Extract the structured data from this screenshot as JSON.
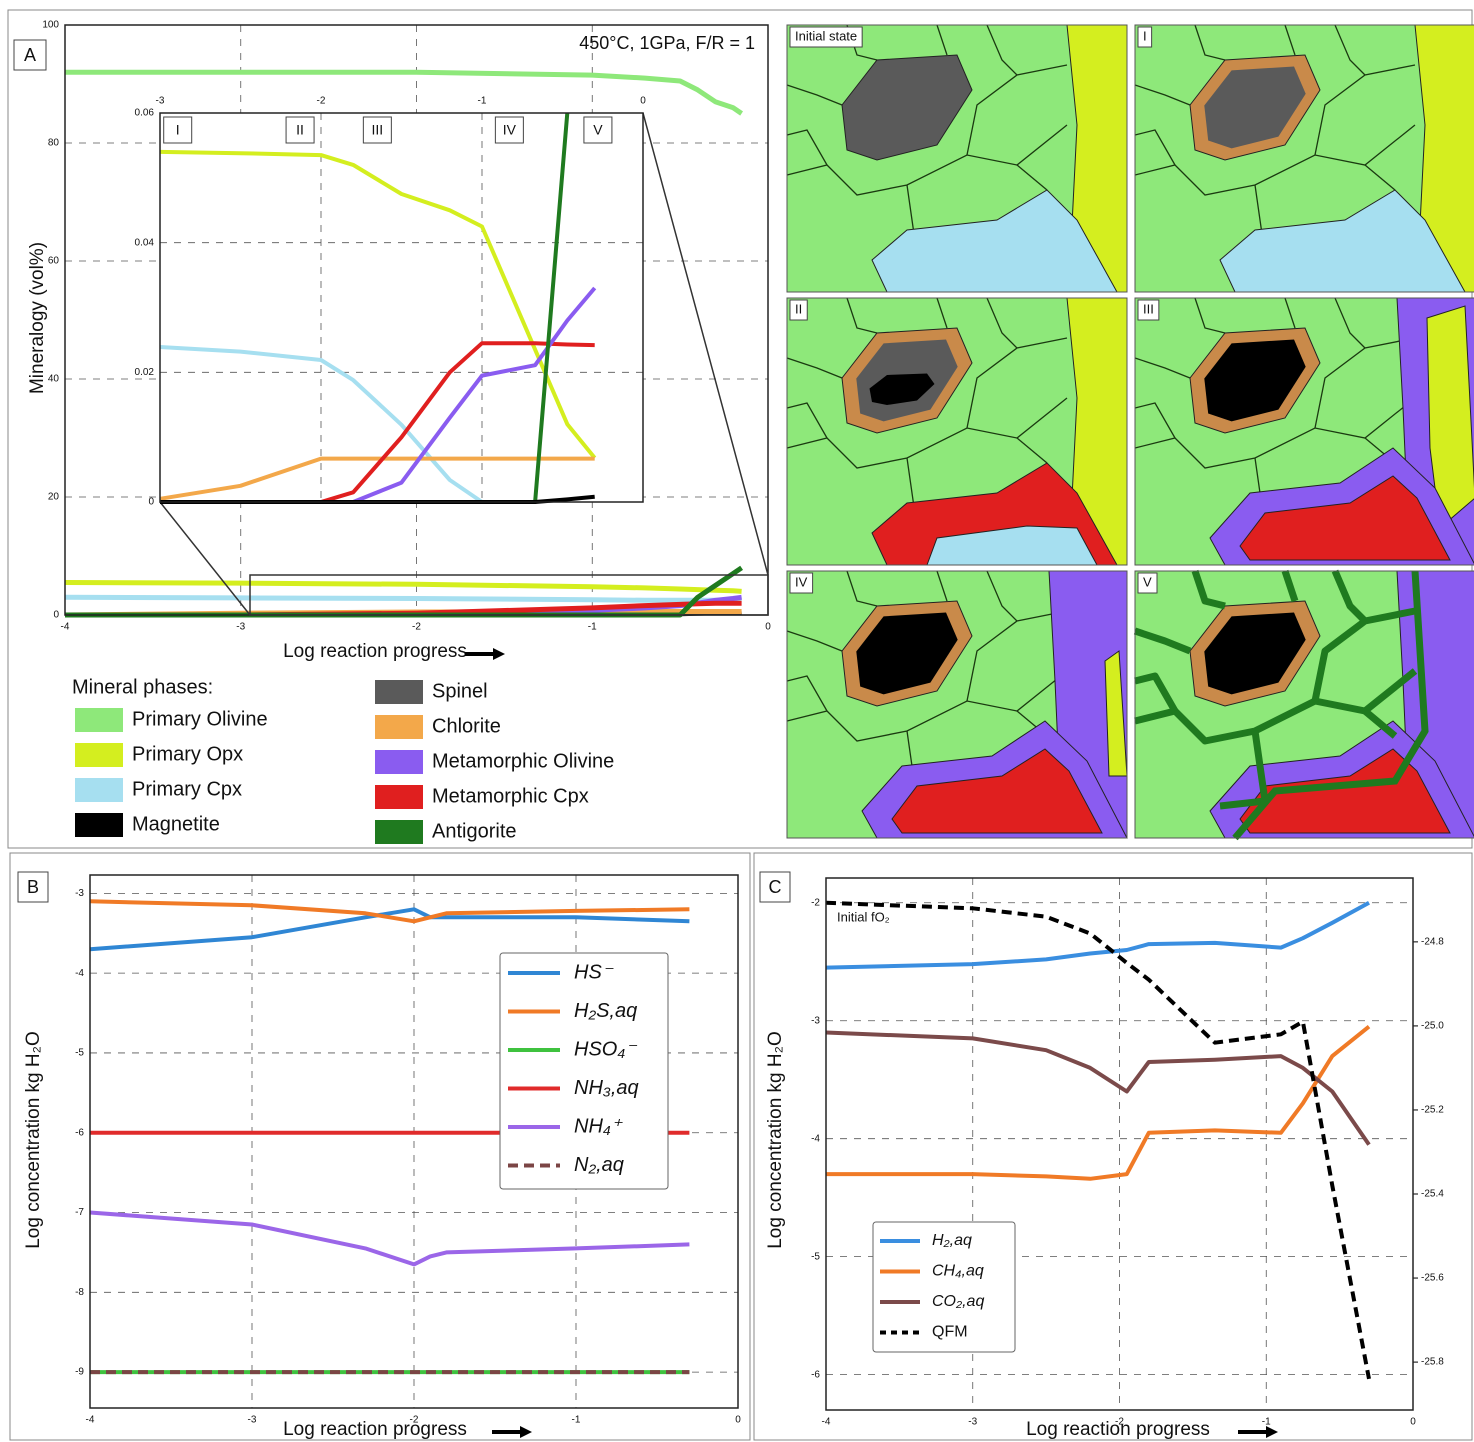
{
  "chart_data": [
    {
      "type": "line",
      "panel_label": "A",
      "annotation": "450°C, 1GPa, F/R = 1",
      "xlabel": "Log reaction progress",
      "ylabel": "Mineralogy (vol%)",
      "x": [
        -4,
        -3,
        -2,
        -1,
        -0.7,
        -0.5,
        -0.4,
        -0.3,
        -0.2,
        -0.15
      ],
      "xlim": [
        -4,
        0
      ],
      "xticks": [
        -4,
        -3,
        -2,
        -1,
        0
      ],
      "ylim": [
        0,
        100
      ],
      "yticks": [
        0,
        20,
        40,
        60,
        80,
        100
      ],
      "grid": true,
      "legend_title": "Mineral phases:",
      "series": [
        {
          "name": "Primary Olivine",
          "color": "#8ee87a",
          "values": [
            92,
            92,
            92,
            91.5,
            91,
            90.5,
            89,
            87,
            86,
            85
          ]
        },
        {
          "name": "Primary Opx",
          "color": "#d4ee1f",
          "values": [
            5.5,
            5.4,
            5.2,
            4.8,
            4.6,
            4.4,
            4.3,
            4.2,
            4.1,
            4.0
          ]
        },
        {
          "name": "Primary Cpx",
          "color": "#a6dff0",
          "values": [
            3,
            2.9,
            2.8,
            2.6,
            2.5,
            2.5,
            2.5,
            2.5,
            2.5,
            2.5
          ]
        },
        {
          "name": "Magnetite",
          "color": "#000000",
          "values": [
            0,
            0,
            0,
            0,
            0.1,
            0.2,
            0.3,
            0.4,
            0.4,
            0.5
          ]
        },
        {
          "name": "Spinel",
          "color": "#5a5a5a",
          "values": [
            null,
            null,
            null,
            null,
            null,
            null,
            null,
            null,
            null,
            null
          ]
        },
        {
          "name": "Chlorite",
          "color": "#f3a84a",
          "values": [
            0,
            0.3,
            0.5,
            0.6,
            0.6,
            0.6,
            0.6,
            0.6,
            0.6,
            0.6
          ]
        },
        {
          "name": "Metamorphic Olivine",
          "color": "#8a5cf0",
          "values": [
            0,
            0,
            0.1,
            0.8,
            1.2,
            1.6,
            2,
            2.5,
            2.8,
            3.0
          ]
        },
        {
          "name": "Metamorphic Cpx",
          "color": "#e01f1f",
          "values": [
            0,
            0,
            0.3,
            1.2,
            1.6,
            1.8,
            1.9,
            2,
            2,
            2
          ]
        },
        {
          "name": "Antigorite",
          "color": "#1f7a1f",
          "values": [
            0,
            0,
            0,
            0,
            0,
            0,
            3,
            5,
            7,
            8
          ]
        }
      ]
    },
    {
      "type": "line",
      "x": [
        -3,
        -2.5,
        -2,
        -1.8,
        -1.5,
        -1.2,
        -1,
        -0.67,
        -0.47,
        -0.3
      ],
      "xlim": [
        -3,
        0
      ],
      "xticks": [
        -3,
        -2,
        -1,
        0
      ],
      "ylim": [
        0,
        0.06
      ],
      "yticks": [
        0,
        0.02,
        0.04,
        0.06
      ],
      "grid": true,
      "stage_labels": [
        {
          "label": "I",
          "x": -2.89
        },
        {
          "label": "II",
          "x": -2.13
        },
        {
          "label": "III",
          "x": -1.65
        },
        {
          "label": "IV",
          "x": -0.83
        },
        {
          "label": "V",
          "x": -0.28
        }
      ],
      "series": [
        {
          "color": "#d4ee1f",
          "values": [
            0.054,
            0.0538,
            0.0535,
            0.052,
            0.0475,
            0.045,
            0.0425,
            0.0235,
            0.012,
            0.0068
          ]
        },
        {
          "color": "#a6dff0",
          "values": [
            0.0239,
            0.0232,
            0.0219,
            0.0188,
            0.0119,
            0.0034,
            0,
            null,
            null,
            null
          ]
        },
        {
          "color": "#f3a84a",
          "values": [
            0.0005,
            0.0025,
            0.0067,
            0.0067,
            0.0067,
            0.0067,
            0.0067,
            0.0067,
            0.0067,
            0.0067
          ]
        },
        {
          "color": "#e01f1f",
          "values": [
            0,
            0,
            0,
            0.0015,
            0.01,
            0.02,
            0.0245,
            0.0245,
            0.0243,
            0.0242
          ]
        },
        {
          "color": "#8a5cf0",
          "values": [
            0,
            0,
            0,
            0,
            0.003,
            0.013,
            0.0195,
            0.0211,
            0.028,
            0.033
          ]
        },
        {
          "color": "#1f7a1f",
          "values": [
            0,
            0,
            0,
            0,
            0,
            0,
            0,
            0,
            0.06,
            null
          ]
        },
        {
          "color": "#000000",
          "values": [
            0,
            0,
            0,
            0,
            0,
            0,
            0,
            0,
            0.0004,
            0.0008
          ]
        }
      ]
    },
    {
      "type": "line",
      "panel_label": "B",
      "xlabel": "Log reaction progress",
      "ylabel": "Log concentration kg H₂O",
      "x": [
        -4,
        -3,
        -2.3,
        -2,
        -1.9,
        -1.8,
        -1,
        -0.3
      ],
      "xlim": [
        -4,
        0
      ],
      "xticks": [
        -4,
        -3,
        -2,
        -1,
        0
      ],
      "ylim": [
        -9.45,
        -2.77
      ],
      "yticks": [
        -9,
        -8,
        -7,
        -6,
        -5,
        -4,
        -3
      ],
      "grid": true,
      "series": [
        {
          "name": "HS⁻",
          "color": "#2f86d4",
          "values": [
            -3.7,
            -3.55,
            -3.3,
            -3.2,
            -3.3,
            -3.3,
            -3.3,
            -3.35
          ]
        },
        {
          "name": "H₂S,aq",
          "color": "#f07a26",
          "values": [
            -3.1,
            -3.15,
            -3.25,
            -3.35,
            -3.3,
            -3.25,
            -3.22,
            -3.2
          ]
        },
        {
          "name": "HSO₄⁻",
          "color": "#3fc23f",
          "values": [
            -9,
            -9,
            -9,
            -9,
            -9,
            -9,
            -9,
            -9
          ]
        },
        {
          "name": "NH₃,aq",
          "color": "#e02b2b",
          "values": [
            -6,
            -6,
            -6,
            -6,
            -6,
            -6,
            -6,
            -6
          ]
        },
        {
          "name": "NH₄⁺",
          "color": "#9b66e8",
          "values": [
            -7,
            -7.15,
            -7.45,
            -7.65,
            -7.55,
            -7.5,
            -7.45,
            -7.4
          ]
        },
        {
          "name": "N₂,aq",
          "color": "#7b4545",
          "dash": true,
          "values": [
            -9,
            -9,
            -9,
            -9,
            -9,
            -9,
            -9,
            -9
          ]
        }
      ]
    },
    {
      "type": "line",
      "panel_label": "C",
      "xlabel": "Log reaction progress",
      "ylabel": "Log concentration kg H₂O",
      "annotation": "Initial fO₂",
      "x": [
        -4,
        -3,
        -2.5,
        -2.2,
        -1.95,
        -1.8,
        -1.35,
        -0.9,
        -0.75,
        -0.55,
        -0.3
      ],
      "xlim": [
        -4,
        0
      ],
      "xticks": [
        -4,
        -3,
        -2,
        -1,
        0
      ],
      "ylim": [
        -6.3,
        -1.79
      ],
      "yticks": [
        -6,
        -5,
        -4,
        -3,
        -2
      ],
      "y2lim": [
        -25.914,
        -24.648
      ],
      "y2ticks": [
        -24.8,
        {
          "value": -25,
          "label": "-25.0"
        },
        -25.2,
        -25.4,
        -25.6,
        -25.8
      ],
      "grid": true,
      "series": [
        {
          "name": "H₂,aq",
          "color": "#3a8ee0",
          "values": [
            -2.55,
            -2.52,
            -2.48,
            -2.43,
            -2.4,
            -2.35,
            -2.34,
            -2.38,
            -2.3,
            -2.17,
            -2.0
          ]
        },
        {
          "name": "CH₄,aq",
          "color": "#f07a26",
          "values": [
            -4.3,
            -4.3,
            -4.32,
            -4.34,
            -4.3,
            -3.95,
            -3.93,
            -3.95,
            -3.7,
            -3.3,
            -3.05
          ]
        },
        {
          "name": "CO₂,aq",
          "color": "#7b4a4a",
          "values": [
            -3.1,
            -3.15,
            -3.25,
            -3.4,
            -3.6,
            -3.35,
            -3.33,
            -3.3,
            -3.4,
            -3.6,
            -4.05
          ]
        },
        {
          "name": "QFM",
          "color": "#000000",
          "dash": true,
          "axis": "y2",
          "values": [
            -24.707,
            -24.72,
            -24.74,
            -24.78,
            -24.85,
            -24.89,
            -25.04,
            -25.02,
            -24.99,
            -25.38,
            -25.84
          ]
        }
      ]
    }
  ],
  "schematics": {
    "labels": [
      "Initial state",
      "I",
      "II",
      "III",
      "IV",
      "V"
    ]
  }
}
